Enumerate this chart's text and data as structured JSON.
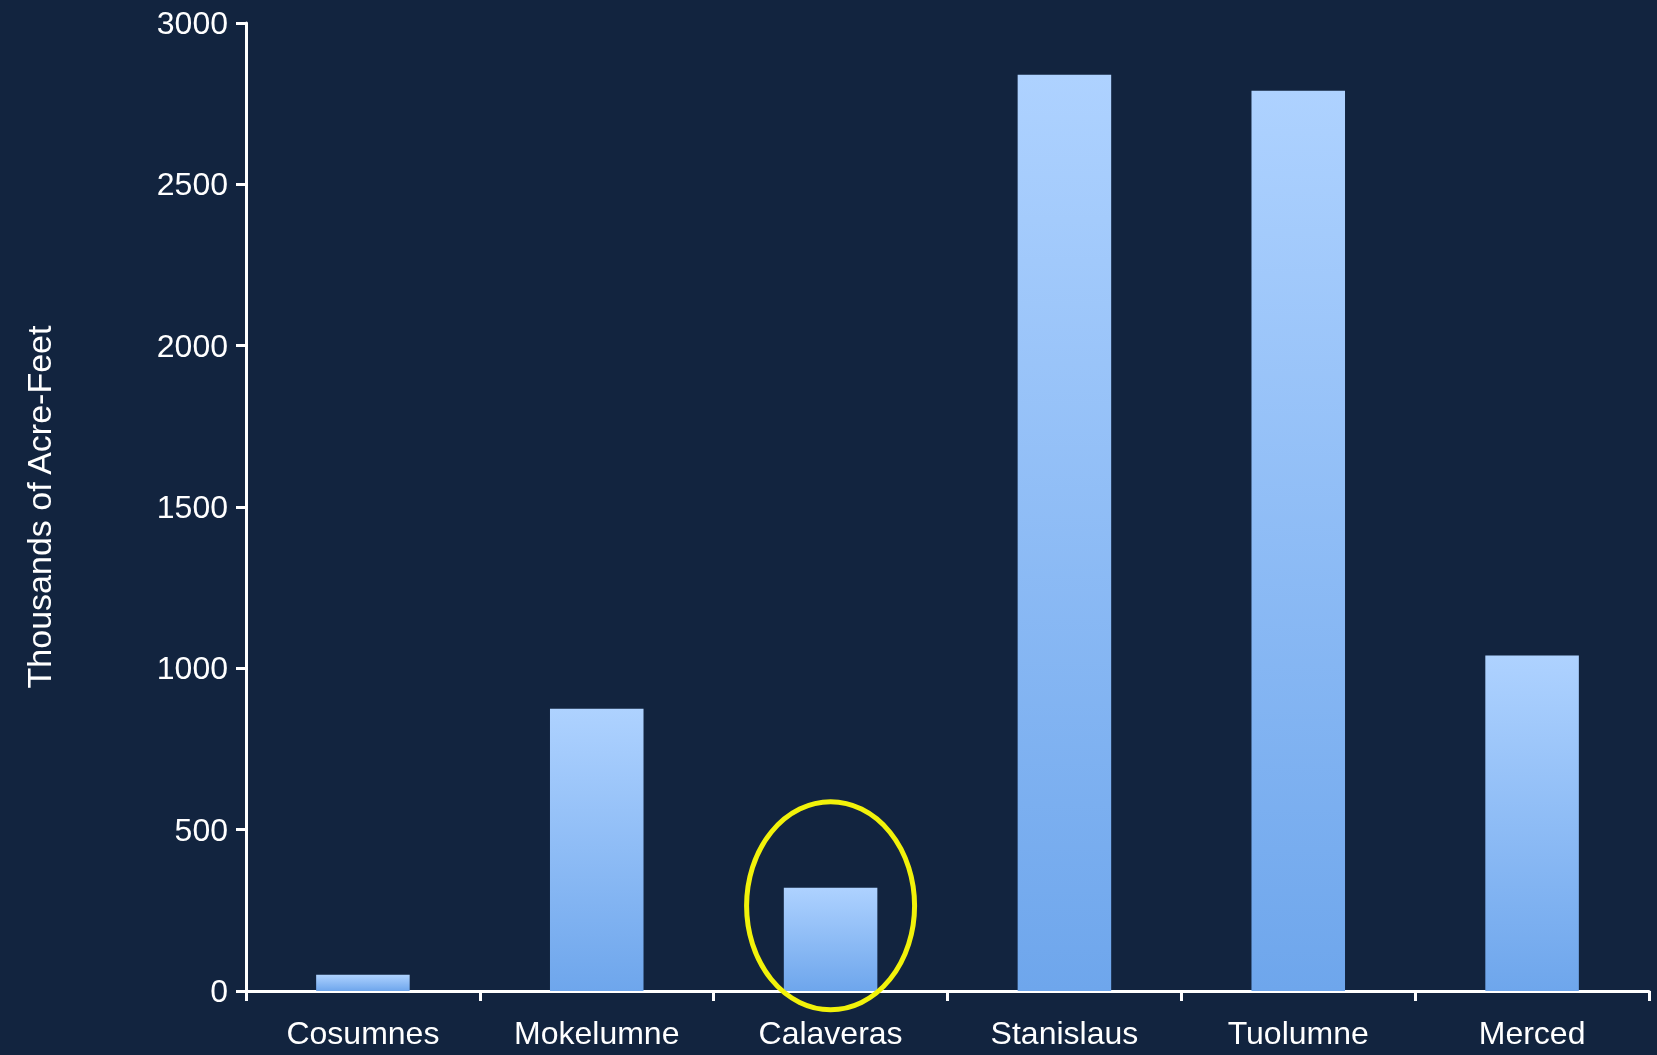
{
  "chart_data": {
    "type": "bar",
    "ylabel": "Thousands of Acre-Feet",
    "categories": [
      "Cosumnes",
      "Mokelumne",
      "Calaveras",
      "Stanislaus",
      "Tuolumne",
      "Merced"
    ],
    "values": [
      50,
      875,
      320,
      2840,
      2790,
      1040
    ],
    "color": "#6ea6ec",
    "ylim": [
      0,
      3000
    ],
    "yticks": [
      0,
      500,
      1000,
      1500,
      2000,
      2500,
      3000
    ],
    "grid": false
  }
}
